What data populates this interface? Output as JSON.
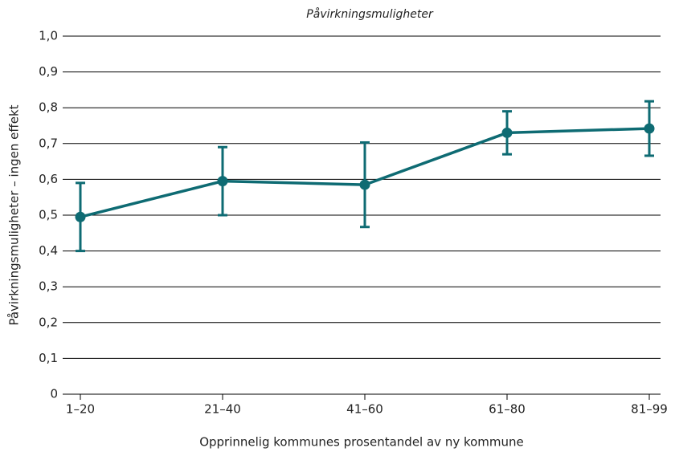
{
  "chart_data": {
    "type": "line",
    "title": "Påvirkningsmuligheter",
    "x_label": "Opprinnelig kommunes prosentandel av ny kommune",
    "y_label": "Påvirkningsmuligheter – ingen effekt",
    "categories": [
      "1–20",
      "21–40",
      "41–60",
      "61–80",
      "81–99"
    ],
    "series": [
      {
        "name": "Påvirkningsmuligheter",
        "color": "#0e6b73",
        "values": [
          0.495,
          0.595,
          0.585,
          0.73,
          0.742
        ],
        "errors": [
          0.095,
          0.095,
          0.118,
          0.06,
          0.076
        ]
      }
    ],
    "ylim": [
      0,
      1
    ],
    "yticks": [
      0,
      {
        "value": 0.1,
        "label": "0,1"
      },
      {
        "value": 0.2,
        "label": "0,2"
      },
      {
        "value": 0.3,
        "label": "0,3"
      },
      {
        "value": 0.4,
        "label": "0,4"
      },
      {
        "value": 0.5,
        "label": "0,5"
      },
      {
        "value": 0.6,
        "label": "0,6"
      },
      {
        "value": 0.7,
        "label": "0,7"
      },
      {
        "value": 0.8,
        "label": "0,8"
      },
      {
        "value": 0.9,
        "label": "0,9"
      },
      {
        "value": 1,
        "label": "1,0"
      }
    ],
    "grid": true
  }
}
